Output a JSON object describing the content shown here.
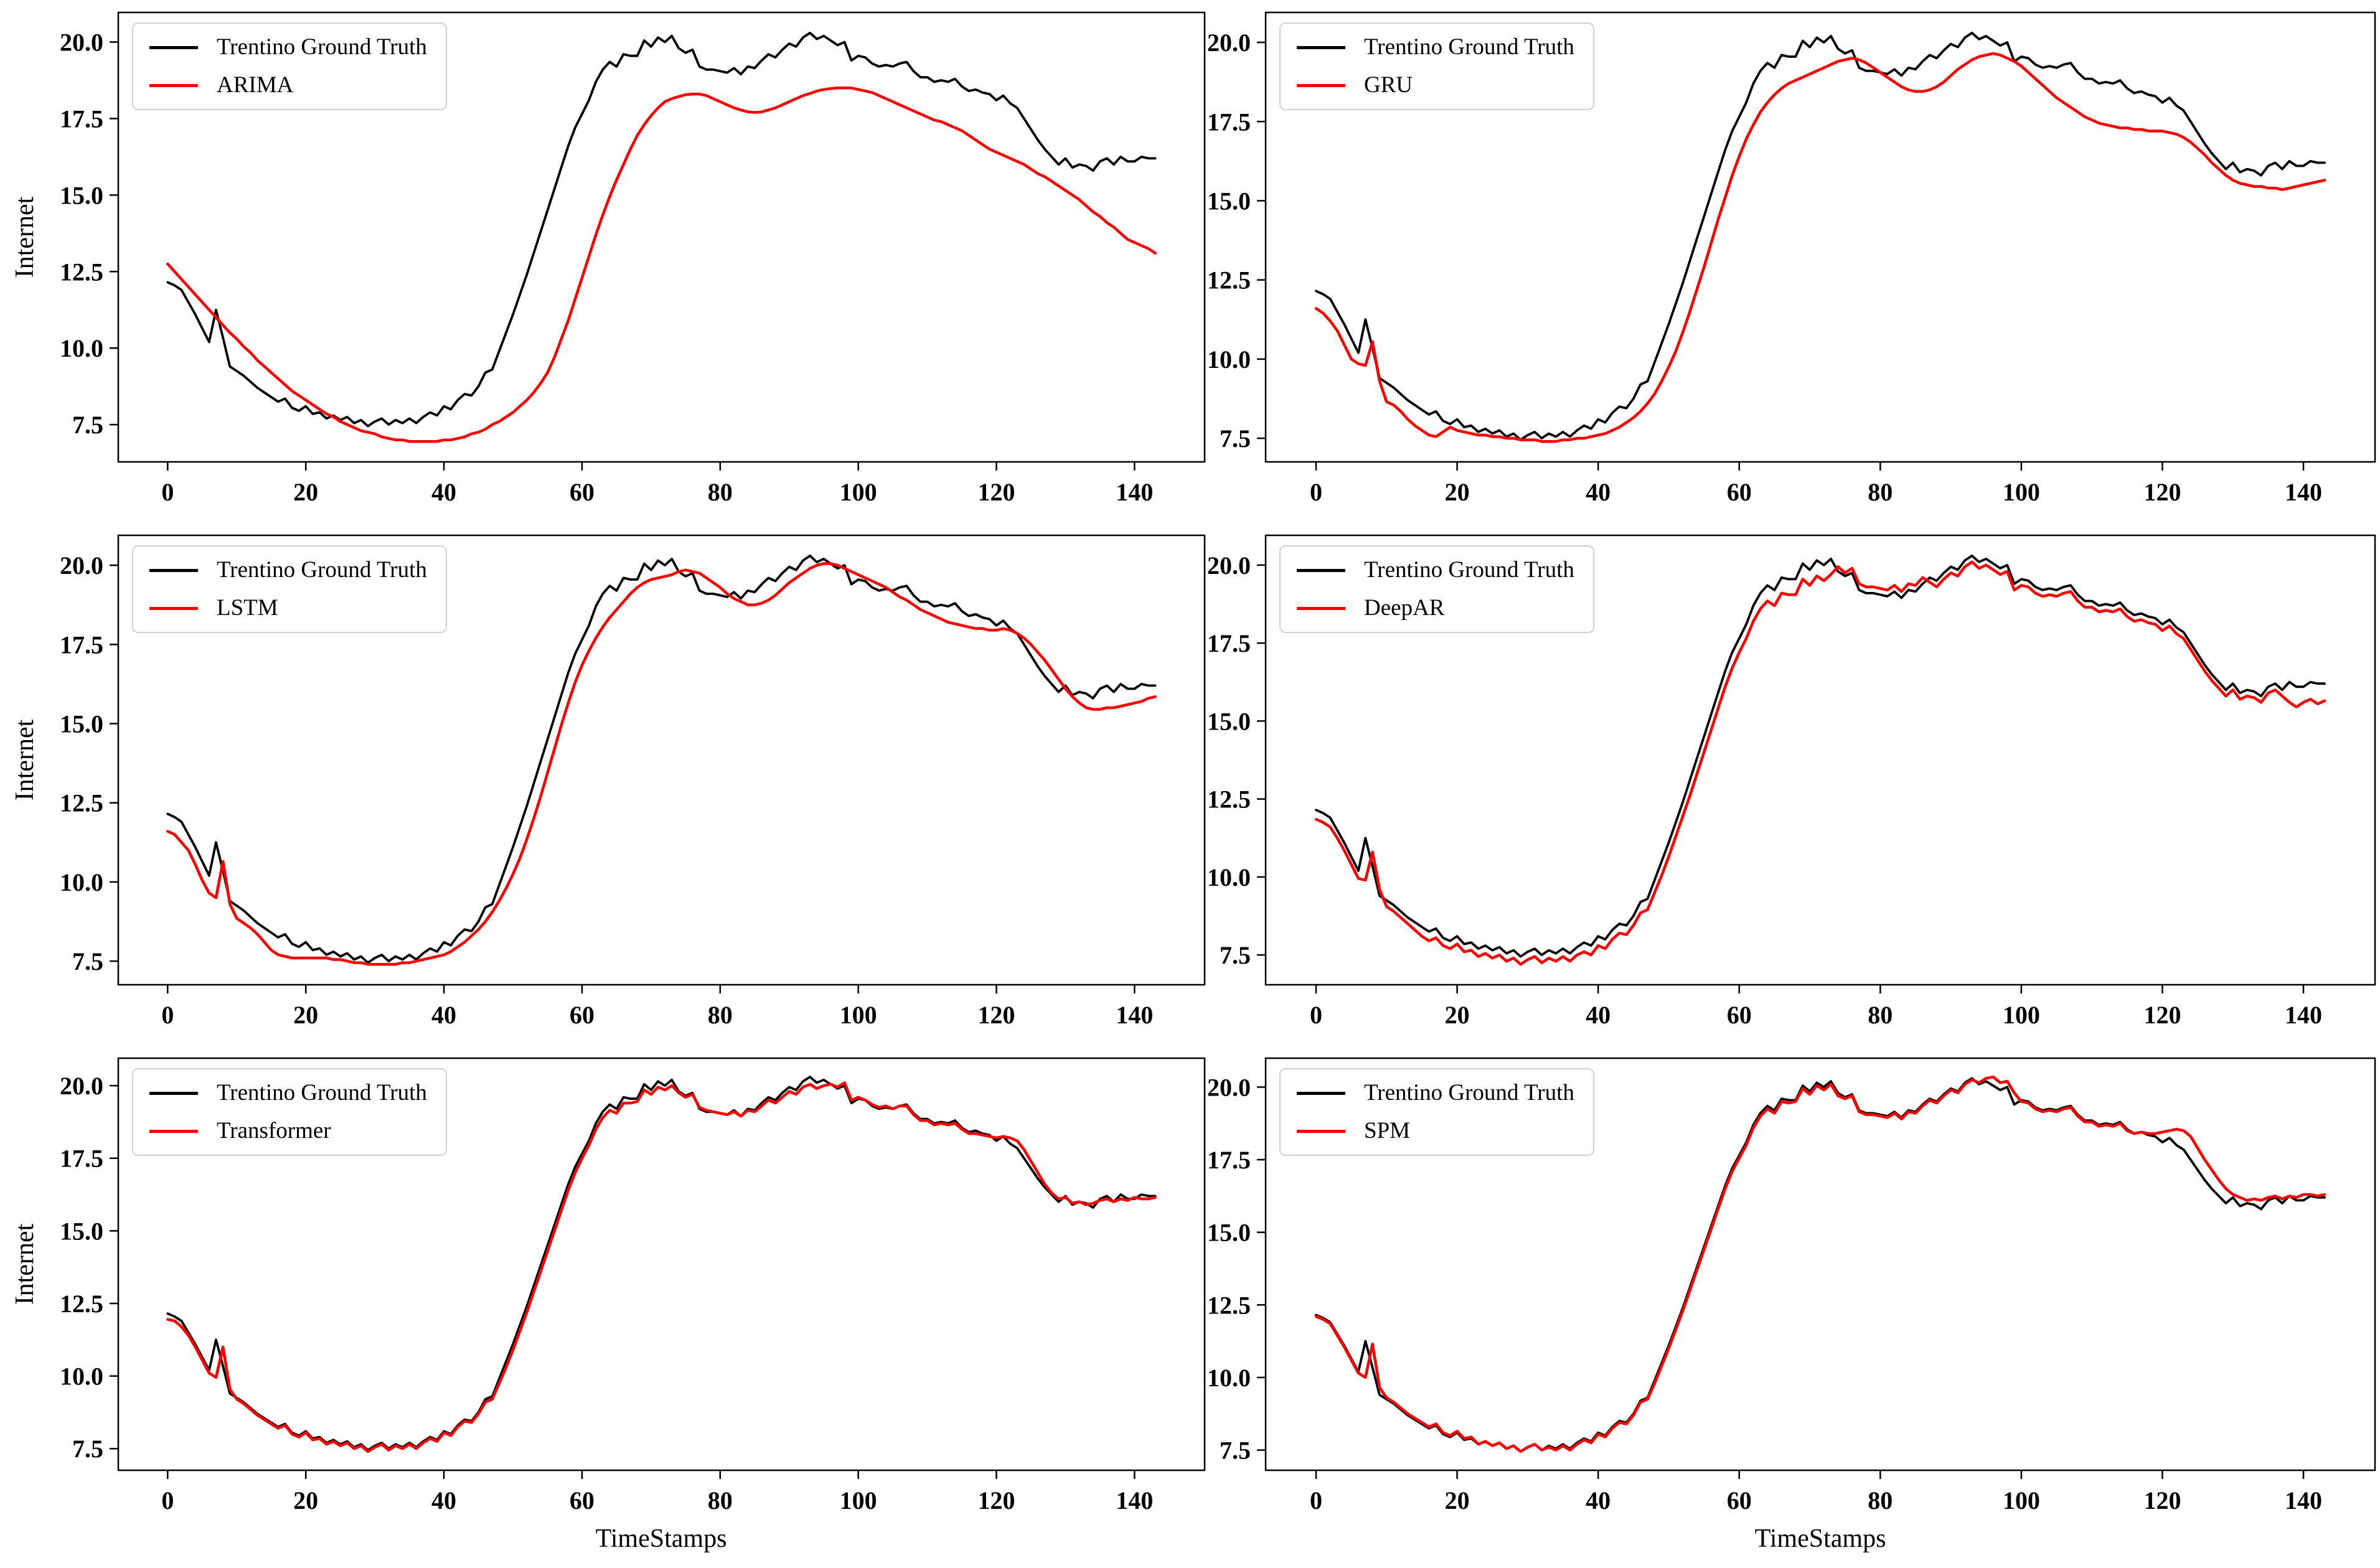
{
  "figure": {
    "background": "#ffffff",
    "grid": {
      "rows": 3,
      "cols": 2
    },
    "description_colors": {
      "ground_truth": "#000000",
      "prediction": "#ff0000",
      "legend_border": "#d2d2d2",
      "spine": "#000000"
    }
  },
  "chart_data": {
    "type": "line",
    "xlabel": "TimeStamps",
    "ylabel": "Internet",
    "x_ticks": [
      0,
      20,
      40,
      60,
      80,
      100,
      120,
      140
    ],
    "x_tick_labels": [
      "0",
      "20",
      "40",
      "60",
      "80",
      "100",
      "120",
      "140"
    ],
    "y_ticks": [
      7.5,
      10.0,
      12.5,
      15.0,
      17.5,
      20.0
    ],
    "y_tick_labels": [
      "7.5",
      "10.0",
      "12.5",
      "15.0",
      "17.5",
      "20.0"
    ],
    "x_lim": [
      -7.15,
      150.15
    ],
    "y_margin_frac": 0.05,
    "x_range_data": [
      0,
      143
    ],
    "legend_position": "upper left",
    "grid_lines": "off",
    "ground_truth": {
      "name": "Trentino Ground Truth",
      "color": "#000000",
      "values": [
        12.15,
        12.05,
        11.9,
        11.5,
        11.1,
        10.65,
        10.2,
        11.25,
        10.35,
        9.4,
        9.25,
        9.1,
        8.9,
        8.7,
        8.55,
        8.4,
        8.25,
        8.35,
        8.05,
        7.95,
        8.1,
        7.85,
        7.9,
        7.7,
        7.8,
        7.65,
        7.75,
        7.55,
        7.65,
        7.45,
        7.6,
        7.7,
        7.5,
        7.65,
        7.55,
        7.7,
        7.55,
        7.75,
        7.9,
        7.8,
        8.1,
        8.0,
        8.3,
        8.5,
        8.45,
        8.75,
        9.2,
        9.3,
        9.9,
        10.5,
        11.1,
        11.75,
        12.4,
        13.1,
        13.8,
        14.5,
        15.2,
        15.9,
        16.6,
        17.2,
        17.65,
        18.1,
        18.7,
        19.1,
        19.35,
        19.2,
        19.6,
        19.55,
        19.55,
        20.05,
        19.85,
        20.15,
        20.0,
        20.2,
        19.8,
        19.65,
        19.75,
        19.2,
        19.1,
        19.1,
        19.05,
        19.0,
        19.15,
        18.95,
        19.2,
        19.15,
        19.4,
        19.6,
        19.5,
        19.75,
        19.95,
        19.85,
        20.15,
        20.3,
        20.1,
        20.2,
        20.05,
        19.9,
        20.0,
        19.4,
        19.55,
        19.5,
        19.3,
        19.2,
        19.25,
        19.2,
        19.3,
        19.35,
        19.05,
        18.85,
        18.85,
        18.7,
        18.75,
        18.7,
        18.8,
        18.55,
        18.4,
        18.45,
        18.35,
        18.3,
        18.1,
        18.25,
        18.0,
        17.85,
        17.5,
        17.15,
        16.8,
        16.5,
        16.25,
        16.0,
        16.2,
        15.9,
        16.0,
        15.95,
        15.8,
        16.1,
        16.2,
        16.0,
        16.25,
        16.1,
        16.1,
        16.25,
        16.2,
        16.2
      ]
    },
    "panels": [
      {
        "model": "ARIMA",
        "color": "#ff0000",
        "grid": {
          "row": 0,
          "col": 0
        },
        "values": [
          12.75,
          12.5,
          12.25,
          12.0,
          11.75,
          11.5,
          11.25,
          11.0,
          10.75,
          10.5,
          10.3,
          10.05,
          9.85,
          9.6,
          9.4,
          9.2,
          9.0,
          8.8,
          8.6,
          8.45,
          8.3,
          8.15,
          8.0,
          7.85,
          7.75,
          7.6,
          7.5,
          7.4,
          7.3,
          7.25,
          7.2,
          7.1,
          7.05,
          7.0,
          7.0,
          6.95,
          6.95,
          6.95,
          6.95,
          6.95,
          7.0,
          7.0,
          7.05,
          7.1,
          7.2,
          7.25,
          7.35,
          7.5,
          7.6,
          7.75,
          7.9,
          8.1,
          8.3,
          8.55,
          8.85,
          9.2,
          9.7,
          10.3,
          10.9,
          11.6,
          12.3,
          13.0,
          13.7,
          14.35,
          14.95,
          15.5,
          16.0,
          16.5,
          16.95,
          17.3,
          17.6,
          17.85,
          18.05,
          18.15,
          18.22,
          18.28,
          18.3,
          18.3,
          18.25,
          18.15,
          18.05,
          17.95,
          17.85,
          17.78,
          17.72,
          17.7,
          17.72,
          17.78,
          17.85,
          17.95,
          18.05,
          18.15,
          18.25,
          18.32,
          18.4,
          18.45,
          18.48,
          18.5,
          18.5,
          18.5,
          18.45,
          18.4,
          18.35,
          18.25,
          18.15,
          18.05,
          17.95,
          17.85,
          17.75,
          17.65,
          17.55,
          17.45,
          17.4,
          17.3,
          17.2,
          17.1,
          16.95,
          16.8,
          16.65,
          16.5,
          16.4,
          16.3,
          16.2,
          16.1,
          16.0,
          15.85,
          15.7,
          15.6,
          15.45,
          15.3,
          15.15,
          15.0,
          14.85,
          14.65,
          14.45,
          14.3,
          14.1,
          13.95,
          13.75,
          13.55,
          13.45,
          13.35,
          13.25,
          13.1
        ]
      },
      {
        "model": "GRU",
        "color": "#ff0000",
        "grid": {
          "row": 0,
          "col": 1
        },
        "values": [
          11.6,
          11.45,
          11.2,
          10.9,
          10.45,
          10.0,
          9.85,
          9.8,
          10.55,
          9.3,
          8.65,
          8.55,
          8.35,
          8.1,
          7.9,
          7.75,
          7.6,
          7.55,
          7.7,
          7.85,
          7.75,
          7.7,
          7.65,
          7.6,
          7.6,
          7.55,
          7.55,
          7.5,
          7.5,
          7.45,
          7.45,
          7.45,
          7.4,
          7.4,
          7.4,
          7.45,
          7.45,
          7.5,
          7.5,
          7.55,
          7.6,
          7.65,
          7.75,
          7.85,
          8.0,
          8.15,
          8.35,
          8.6,
          8.9,
          9.3,
          9.75,
          10.25,
          10.85,
          11.5,
          12.2,
          12.9,
          13.65,
          14.4,
          15.1,
          15.8,
          16.4,
          16.95,
          17.4,
          17.8,
          18.1,
          18.35,
          18.55,
          18.7,
          18.8,
          18.9,
          19.0,
          19.1,
          19.2,
          19.3,
          19.4,
          19.45,
          19.5,
          19.45,
          19.35,
          19.2,
          19.05,
          18.9,
          18.75,
          18.6,
          18.5,
          18.45,
          18.45,
          18.5,
          18.6,
          18.75,
          18.95,
          19.15,
          19.3,
          19.45,
          19.55,
          19.6,
          19.65,
          19.6,
          19.5,
          19.4,
          19.25,
          19.05,
          18.85,
          18.65,
          18.45,
          18.25,
          18.1,
          17.95,
          17.8,
          17.65,
          17.55,
          17.45,
          17.4,
          17.35,
          17.3,
          17.3,
          17.25,
          17.25,
          17.2,
          17.2,
          17.2,
          17.15,
          17.1,
          17.0,
          16.85,
          16.65,
          16.45,
          16.2,
          16.0,
          15.8,
          15.65,
          15.55,
          15.5,
          15.45,
          15.45,
          15.4,
          15.4,
          15.35,
          15.4,
          15.45,
          15.5,
          15.55,
          15.6,
          15.65
        ]
      },
      {
        "model": "LSTM",
        "color": "#ff0000",
        "grid": {
          "row": 1,
          "col": 0
        },
        "values": [
          11.6,
          11.5,
          11.25,
          11.0,
          10.55,
          10.05,
          9.65,
          9.5,
          10.65,
          9.3,
          8.85,
          8.7,
          8.55,
          8.35,
          8.1,
          7.85,
          7.7,
          7.65,
          7.6,
          7.6,
          7.6,
          7.6,
          7.6,
          7.6,
          7.55,
          7.55,
          7.5,
          7.45,
          7.45,
          7.4,
          7.4,
          7.4,
          7.4,
          7.4,
          7.45,
          7.45,
          7.5,
          7.55,
          7.6,
          7.65,
          7.7,
          7.8,
          7.95,
          8.1,
          8.3,
          8.5,
          8.75,
          9.05,
          9.4,
          9.8,
          10.25,
          10.75,
          11.35,
          12.0,
          12.7,
          13.45,
          14.2,
          14.95,
          15.65,
          16.3,
          16.85,
          17.3,
          17.7,
          18.05,
          18.35,
          18.6,
          18.85,
          19.1,
          19.3,
          19.45,
          19.55,
          19.6,
          19.65,
          19.7,
          19.8,
          19.85,
          19.8,
          19.75,
          19.6,
          19.45,
          19.3,
          19.1,
          18.95,
          18.85,
          18.75,
          18.75,
          18.8,
          18.9,
          19.05,
          19.25,
          19.45,
          19.6,
          19.75,
          19.9,
          20.0,
          20.05,
          20.05,
          20.0,
          19.9,
          19.8,
          19.7,
          19.6,
          19.5,
          19.4,
          19.3,
          19.15,
          19.0,
          18.9,
          18.75,
          18.6,
          18.5,
          18.4,
          18.3,
          18.2,
          18.15,
          18.1,
          18.05,
          18.0,
          18.0,
          17.95,
          17.95,
          18.0,
          17.95,
          17.85,
          17.7,
          17.5,
          17.25,
          17.0,
          16.7,
          16.4,
          16.1,
          15.85,
          15.65,
          15.5,
          15.45,
          15.45,
          15.5,
          15.5,
          15.55,
          15.6,
          15.65,
          15.7,
          15.8,
          15.85
        ]
      },
      {
        "model": "DeepAR",
        "color": "#ff0000",
        "grid": {
          "row": 1,
          "col": 1
        },
        "values": [
          11.85,
          11.75,
          11.6,
          11.25,
          10.85,
          10.4,
          9.95,
          9.9,
          10.8,
          9.6,
          9.05,
          8.9,
          8.7,
          8.5,
          8.3,
          8.1,
          7.95,
          8.05,
          7.8,
          7.7,
          7.85,
          7.6,
          7.65,
          7.45,
          7.55,
          7.4,
          7.5,
          7.3,
          7.4,
          7.2,
          7.35,
          7.45,
          7.25,
          7.4,
          7.3,
          7.45,
          7.3,
          7.5,
          7.6,
          7.5,
          7.8,
          7.7,
          8.0,
          8.2,
          8.15,
          8.45,
          8.85,
          8.95,
          9.5,
          10.05,
          10.65,
          11.3,
          11.95,
          12.6,
          13.3,
          14.0,
          14.7,
          15.4,
          16.1,
          16.7,
          17.2,
          17.65,
          18.2,
          18.6,
          18.85,
          18.7,
          19.1,
          19.05,
          19.05,
          19.55,
          19.35,
          19.65,
          19.5,
          19.7,
          19.95,
          19.75,
          19.9,
          19.4,
          19.3,
          19.3,
          19.25,
          19.2,
          19.35,
          19.15,
          19.4,
          19.35,
          19.6,
          19.45,
          19.3,
          19.55,
          19.75,
          19.65,
          19.95,
          20.1,
          19.9,
          20.0,
          19.85,
          19.7,
          19.8,
          19.2,
          19.35,
          19.3,
          19.1,
          19.0,
          19.05,
          19.0,
          19.1,
          19.15,
          18.85,
          18.65,
          18.65,
          18.5,
          18.55,
          18.5,
          18.6,
          18.35,
          18.2,
          18.25,
          18.15,
          18.1,
          17.9,
          18.05,
          17.8,
          17.65,
          17.3,
          16.95,
          16.6,
          16.3,
          16.05,
          15.8,
          16.0,
          15.7,
          15.8,
          15.75,
          15.6,
          15.9,
          16.0,
          15.8,
          15.6,
          15.45,
          15.6,
          15.7,
          15.55,
          15.65
        ]
      },
      {
        "model": "Transformer",
        "color": "#ff0000",
        "grid": {
          "row": 2,
          "col": 0
        },
        "values": [
          11.95,
          11.9,
          11.7,
          11.4,
          11.0,
          10.55,
          10.1,
          9.95,
          11.0,
          9.55,
          9.2,
          9.05,
          8.85,
          8.65,
          8.5,
          8.35,
          8.2,
          8.3,
          8.0,
          7.9,
          8.05,
          7.8,
          7.85,
          7.65,
          7.75,
          7.6,
          7.7,
          7.5,
          7.6,
          7.4,
          7.55,
          7.65,
          7.45,
          7.6,
          7.5,
          7.65,
          7.5,
          7.7,
          7.85,
          7.75,
          8.05,
          7.95,
          8.25,
          8.45,
          8.4,
          8.7,
          9.1,
          9.2,
          9.75,
          10.3,
          10.9,
          11.55,
          12.2,
          12.9,
          13.6,
          14.3,
          15.0,
          15.7,
          16.4,
          17.0,
          17.5,
          17.95,
          18.5,
          18.9,
          19.15,
          19.05,
          19.4,
          19.4,
          19.45,
          19.85,
          19.7,
          19.95,
          19.85,
          20.0,
          19.75,
          19.6,
          19.7,
          19.25,
          19.15,
          19.1,
          19.05,
          19.0,
          19.1,
          18.95,
          19.15,
          19.1,
          19.3,
          19.5,
          19.4,
          19.6,
          19.8,
          19.7,
          19.95,
          20.05,
          19.9,
          20.0,
          20.05,
          19.95,
          20.1,
          19.5,
          19.6,
          19.5,
          19.35,
          19.25,
          19.3,
          19.2,
          19.3,
          19.3,
          19.0,
          18.8,
          18.8,
          18.65,
          18.7,
          18.65,
          18.7,
          18.5,
          18.35,
          18.35,
          18.3,
          18.25,
          18.2,
          18.25,
          18.2,
          18.1,
          17.8,
          17.4,
          17.0,
          16.6,
          16.3,
          16.1,
          16.15,
          15.95,
          16.0,
          15.9,
          15.95,
          16.05,
          16.1,
          16.0,
          16.1,
          16.05,
          16.15,
          16.1,
          16.1,
          16.15
        ]
      },
      {
        "model": "SPM",
        "color": "#ff0000",
        "grid": {
          "row": 2,
          "col": 1
        },
        "values": [
          12.1,
          12.0,
          11.85,
          11.45,
          11.05,
          10.6,
          10.15,
          10.0,
          11.15,
          9.65,
          9.3,
          9.15,
          8.95,
          8.75,
          8.6,
          8.45,
          8.3,
          8.4,
          8.1,
          8.0,
          8.15,
          7.9,
          7.95,
          7.7,
          7.8,
          7.65,
          7.75,
          7.55,
          7.65,
          7.45,
          7.6,
          7.7,
          7.5,
          7.6,
          7.5,
          7.65,
          7.5,
          7.7,
          7.85,
          7.75,
          8.05,
          7.95,
          8.25,
          8.45,
          8.4,
          8.7,
          9.15,
          9.25,
          9.8,
          10.4,
          11.0,
          11.65,
          12.3,
          13.0,
          13.7,
          14.4,
          15.1,
          15.8,
          16.5,
          17.1,
          17.55,
          18.0,
          18.6,
          19.0,
          19.25,
          19.1,
          19.5,
          19.45,
          19.5,
          19.95,
          19.75,
          20.05,
          19.9,
          20.1,
          19.7,
          19.6,
          19.7,
          19.15,
          19.05,
          19.05,
          19.0,
          18.95,
          19.1,
          18.9,
          19.15,
          19.1,
          19.35,
          19.55,
          19.45,
          19.7,
          19.9,
          19.8,
          20.1,
          20.25,
          20.15,
          20.3,
          20.35,
          20.15,
          20.2,
          19.8,
          19.5,
          19.45,
          19.25,
          19.15,
          19.2,
          19.15,
          19.25,
          19.3,
          19.0,
          18.8,
          18.8,
          18.65,
          18.7,
          18.65,
          18.75,
          18.5,
          18.4,
          18.45,
          18.4,
          18.4,
          18.45,
          18.5,
          18.55,
          18.5,
          18.3,
          17.9,
          17.5,
          17.15,
          16.8,
          16.5,
          16.3,
          16.2,
          16.1,
          16.15,
          16.1,
          16.2,
          16.25,
          16.15,
          16.25,
          16.2,
          16.3,
          16.3,
          16.25,
          16.3
        ]
      }
    ]
  }
}
